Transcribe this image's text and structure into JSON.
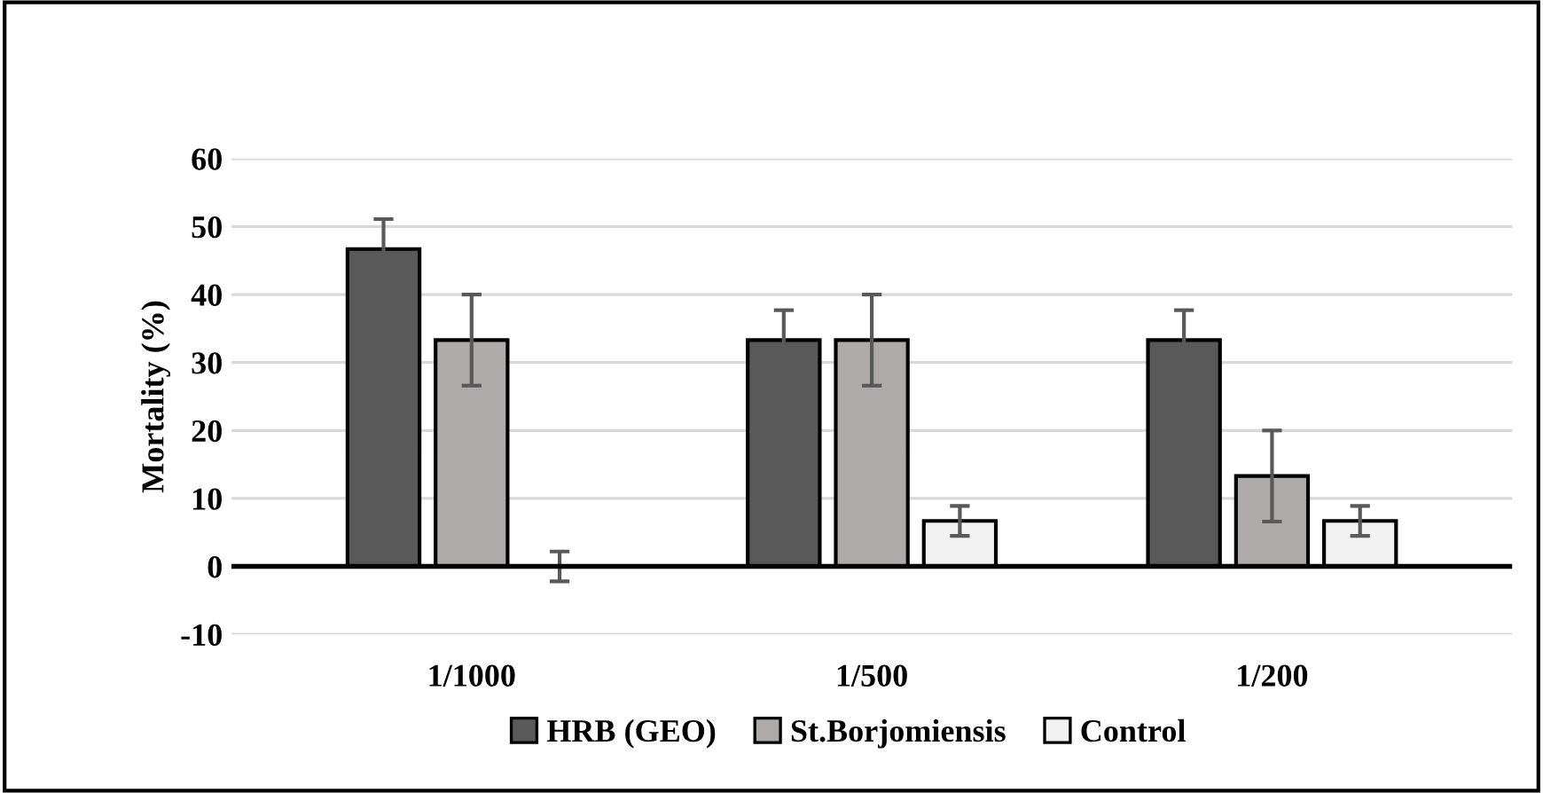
{
  "chart_data": {
    "type": "bar",
    "ylabel": "Mortality (%)",
    "categories": [
      "1/1000",
      "1/500",
      "1/200"
    ],
    "series": [
      {
        "name": "HRB (GEO)",
        "color": "#595959",
        "values": [
          46.7,
          33.3,
          33.3
        ],
        "errors": [
          4.4,
          4.4,
          4.4
        ]
      },
      {
        "name": "St.Borjomiensis",
        "color": "#aeaaaa",
        "values": [
          33.3,
          33.3,
          13.3
        ],
        "errors": [
          6.7,
          6.7,
          6.7
        ]
      },
      {
        "name": "Control",
        "color": "#f2f2f2",
        "values": [
          0,
          6.7,
          6.7
        ],
        "errors": [
          2.2,
          2.2,
          2.2
        ]
      }
    ],
    "ylim": [
      -10,
      60
    ],
    "yticks": [
      -10,
      0,
      10,
      20,
      30,
      40,
      50,
      60
    ],
    "grid": "y",
    "legend": "bottom"
  }
}
